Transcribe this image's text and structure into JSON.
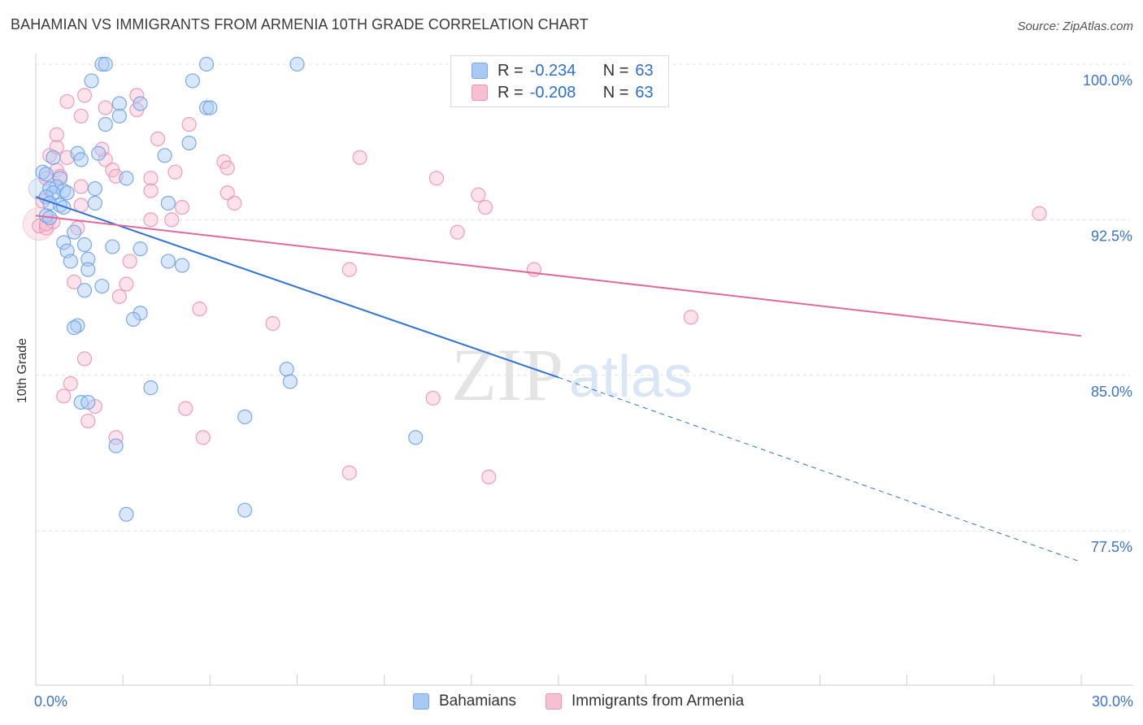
{
  "header": {
    "title": "BAHAMIAN VS IMMIGRANTS FROM ARMENIA 10TH GRADE CORRELATION CHART",
    "source": "Source: ZipAtlas.com"
  },
  "watermark": {
    "zip": "ZIP",
    "atlas": "atlas"
  },
  "legend": {
    "rows": [
      {
        "r_label": "R =",
        "r_value": "-0.234",
        "n_label": "N =",
        "n_value": "63",
        "color": "#a9c9f5",
        "border": "#7aa6e6"
      },
      {
        "r_label": "R =",
        "r_value": "-0.208",
        "n_label": "N =",
        "n_value": "63",
        "color": "#f7bfd2",
        "border": "#ee93b2"
      }
    ]
  },
  "bottom_legend": {
    "items": [
      {
        "label": "Bahamians",
        "color": "#a9c9f5",
        "border": "#7aa6e6"
      },
      {
        "label": "Immigrants from Armenia",
        "color": "#f7bfd2",
        "border": "#ee93b2"
      }
    ]
  },
  "chart_data": {
    "type": "scatter",
    "title": "BAHAMIAN VS IMMIGRANTS FROM ARMENIA 10TH GRADE CORRELATION CHART",
    "ylabel": "10th Grade",
    "xlabel": "",
    "xlim": [
      0,
      30
    ],
    "ylim": [
      71,
      101
    ],
    "x_tick_labels": [
      "0.0%",
      "30.0%"
    ],
    "y_ticks": [
      77.5,
      85.0,
      92.5,
      100.0
    ],
    "y_tick_labels": [
      "77.5%",
      "85.0%",
      "92.5%",
      "100.0%"
    ],
    "grid": true,
    "legend_position": "top-center",
    "series": [
      {
        "name": "Bahamians",
        "color": "#6fa1e8",
        "fill": "#a9c9f5",
        "trend": {
          "x": [
            0,
            15.0
          ],
          "y": [
            93.6,
            84.9
          ],
          "dashed_to": [
            30,
            76.0
          ],
          "color": "#2f72d4"
        },
        "points": [
          [
            1.9,
            100
          ],
          [
            2.0,
            100
          ],
          [
            4.9,
            100
          ],
          [
            7.5,
            100
          ],
          [
            1.6,
            99.2
          ],
          [
            4.5,
            99.2
          ],
          [
            2.4,
            98.1
          ],
          [
            3.0,
            98.1
          ],
          [
            4.9,
            97.9
          ],
          [
            5.0,
            97.9
          ],
          [
            2.4,
            97.5
          ],
          [
            2.0,
            97.1
          ],
          [
            4.4,
            96.2
          ],
          [
            1.2,
            95.7
          ],
          [
            1.8,
            95.7
          ],
          [
            3.7,
            95.6
          ],
          [
            0.5,
            95.5
          ],
          [
            1.3,
            95.4
          ],
          [
            0.2,
            94.8
          ],
          [
            0.3,
            94.7
          ],
          [
            0.7,
            94.5
          ],
          [
            2.6,
            94.5
          ],
          [
            0.6,
            94.1
          ],
          [
            0.4,
            94.0
          ],
          [
            1.7,
            94.0
          ],
          [
            0.8,
            93.9
          ],
          [
            0.5,
            93.8
          ],
          [
            0.9,
            93.8
          ],
          [
            0.3,
            93.6
          ],
          [
            0.4,
            93.3
          ],
          [
            1.7,
            93.3
          ],
          [
            3.8,
            93.3
          ],
          [
            0.7,
            93.2
          ],
          [
            0.8,
            93.1
          ],
          [
            0.3,
            92.7
          ],
          [
            0.4,
            92.6
          ],
          [
            1.1,
            91.9
          ],
          [
            0.8,
            91.4
          ],
          [
            1.4,
            91.3
          ],
          [
            2.2,
            91.2
          ],
          [
            3.0,
            91.1
          ],
          [
            0.9,
            91.0
          ],
          [
            1.5,
            90.6
          ],
          [
            1.0,
            90.5
          ],
          [
            3.8,
            90.5
          ],
          [
            4.2,
            90.3
          ],
          [
            1.5,
            90.1
          ],
          [
            1.9,
            89.3
          ],
          [
            1.4,
            89.1
          ],
          [
            3.0,
            88.0
          ],
          [
            2.8,
            87.7
          ],
          [
            1.2,
            87.4
          ],
          [
            1.1,
            87.3
          ],
          [
            7.2,
            85.3
          ],
          [
            7.3,
            84.7
          ],
          [
            3.3,
            84.4
          ],
          [
            1.3,
            83.7
          ],
          [
            1.5,
            83.7
          ],
          [
            6.0,
            83.0
          ],
          [
            10.9,
            82.0
          ],
          [
            2.3,
            81.6
          ],
          [
            2.6,
            78.3
          ],
          [
            6.0,
            78.5
          ]
        ]
      },
      {
        "name": "Immigrants from Armenia",
        "color": "#ee93b2",
        "fill": "#f7bfd2",
        "trend": {
          "x": [
            0,
            30
          ],
          "y": [
            92.7,
            86.9
          ],
          "color": "#e06a98"
        },
        "points": [
          [
            0.1,
            92.2
          ],
          [
            0.3,
            92.1
          ],
          [
            0.5,
            92.4
          ],
          [
            1.2,
            92.1
          ],
          [
            0.2,
            93.4
          ],
          [
            1.3,
            93.2
          ],
          [
            0.3,
            94.5
          ],
          [
            0.6,
            94.9
          ],
          [
            0.7,
            94.6
          ],
          [
            1.3,
            94.1
          ],
          [
            0.4,
            95.6
          ],
          [
            0.9,
            95.5
          ],
          [
            0.6,
            96.0
          ],
          [
            0.6,
            96.6
          ],
          [
            2.0,
            95.4
          ],
          [
            1.9,
            95.9
          ],
          [
            2.2,
            94.9
          ],
          [
            3.3,
            94.5
          ],
          [
            2.3,
            94.6
          ],
          [
            3.3,
            93.9
          ],
          [
            4.0,
            94.8
          ],
          [
            4.2,
            93.1
          ],
          [
            4.4,
            97.1
          ],
          [
            5.4,
            95.3
          ],
          [
            5.5,
            95.0
          ],
          [
            5.5,
            93.8
          ],
          [
            5.7,
            93.3
          ],
          [
            3.5,
            96.4
          ],
          [
            2.9,
            98.5
          ],
          [
            2.9,
            97.8
          ],
          [
            2.0,
            97.9
          ],
          [
            1.4,
            98.5
          ],
          [
            0.9,
            98.2
          ],
          [
            1.3,
            97.5
          ],
          [
            3.3,
            92.5
          ],
          [
            3.9,
            92.5
          ],
          [
            2.7,
            90.5
          ],
          [
            1.1,
            89.5
          ],
          [
            2.6,
            89.4
          ],
          [
            2.4,
            88.8
          ],
          [
            4.7,
            88.2
          ],
          [
            6.8,
            87.5
          ],
          [
            9.0,
            90.1
          ],
          [
            9.3,
            95.5
          ],
          [
            11.5,
            94.5
          ],
          [
            12.1,
            91.9
          ],
          [
            12.7,
            93.7
          ],
          [
            12.9,
            93.1
          ],
          [
            14.3,
            90.1
          ],
          [
            18.8,
            87.8
          ],
          [
            28.8,
            92.8
          ],
          [
            1.4,
            85.8
          ],
          [
            1.0,
            84.6
          ],
          [
            0.8,
            84.0
          ],
          [
            1.7,
            83.5
          ],
          [
            1.5,
            82.8
          ],
          [
            4.3,
            83.4
          ],
          [
            2.3,
            82.0
          ],
          [
            4.8,
            82.0
          ],
          [
            11.4,
            83.9
          ],
          [
            9.0,
            80.3
          ],
          [
            13.0,
            80.1
          ],
          [
            0.3,
            92.3
          ]
        ]
      }
    ]
  }
}
